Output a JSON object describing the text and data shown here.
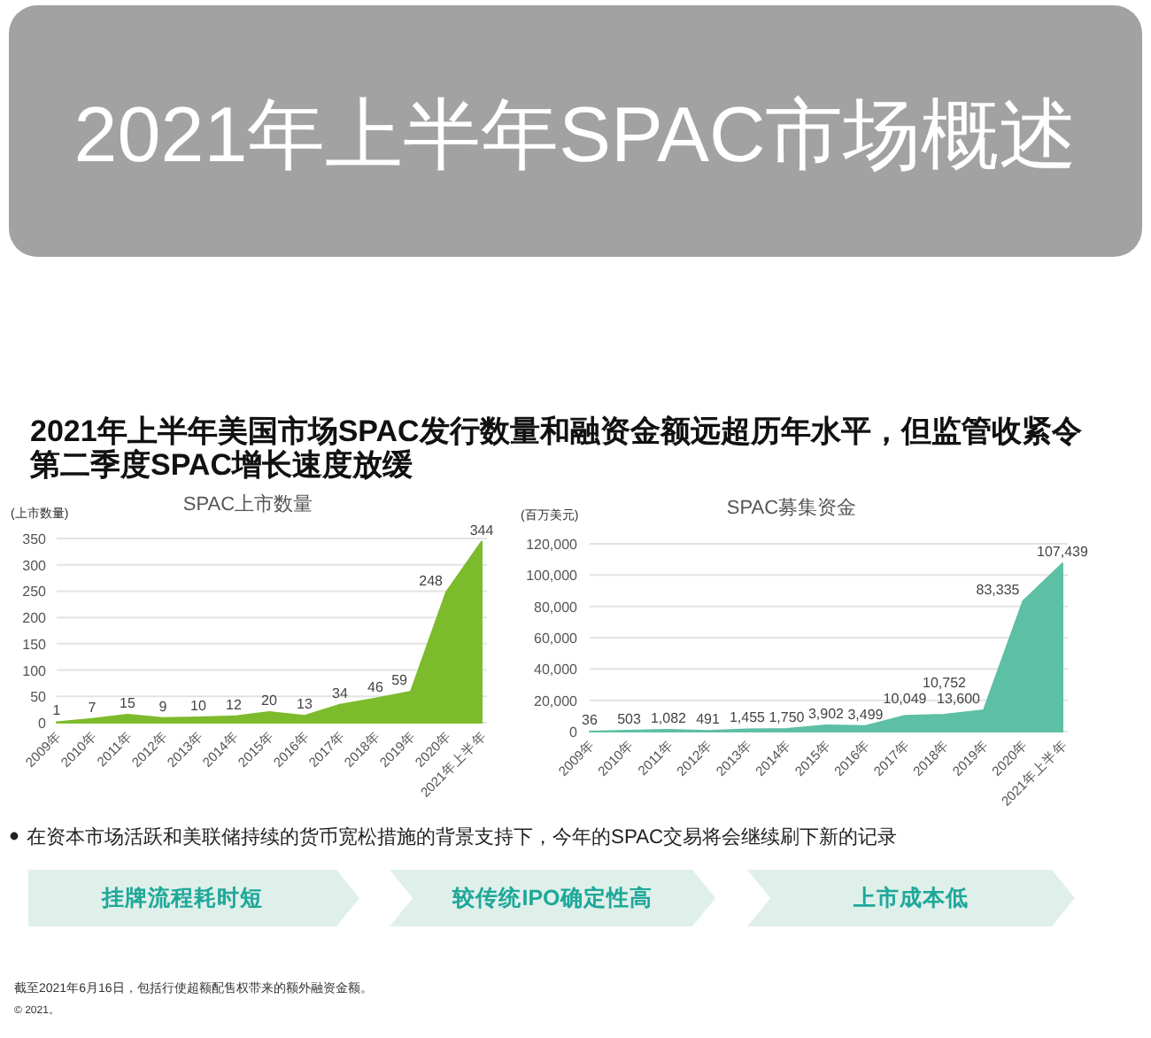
{
  "chart_data": [
    {
      "type": "other",
      "title": "2021年上半年SPAC市场概述",
      "subtitle": "2021年上半年美国市场SPAC发行数量和融资金额远超历年水平，但监管收紧令第二季度SPAC增长速度放缓"
    },
    {
      "type": "area",
      "title": "SPAC上市数量",
      "ylabel": "(上市数量)",
      "categories": [
        "2009年",
        "2010年",
        "2011年",
        "2012年",
        "2013年",
        "2014年",
        "2015年",
        "2016年",
        "2017年",
        "2018年",
        "2019年",
        "2020年",
        "2021年上半年"
      ],
      "values": [
        1,
        7,
        15,
        9,
        10,
        12,
        20,
        13,
        34,
        46,
        59,
        248,
        344
      ],
      "color": "#7cbb2c",
      "ylim": [
        0,
        350
      ],
      "yticks": [
        0,
        50,
        100,
        150,
        200,
        250,
        300,
        350
      ],
      "grid": "y",
      "data_labels": true
    },
    {
      "type": "area",
      "title": "SPAC募集资金",
      "ylabel": "(百万美元)",
      "categories": [
        "2009年",
        "2010年",
        "2011年",
        "2012年",
        "2013年",
        "2014年",
        "2015年",
        "2016年",
        "2017年",
        "2018年",
        "2019年",
        "2020年",
        "2021年上半年"
      ],
      "values": [
        36,
        503,
        1082,
        491,
        1455,
        1750,
        3902,
        3499,
        10049,
        10752,
        13600,
        83335,
        107439
      ],
      "value_labels": [
        "36",
        "503",
        "1,082",
        "491",
        "1,455",
        "1,750",
        "3,902",
        "3,499",
        "10,049",
        "10,752",
        "13,600",
        "83,335",
        "107,439"
      ],
      "color": "#5dbfa4",
      "ylim": [
        0,
        120000
      ],
      "yticks": [
        0,
        {
          "value": 20000,
          "label": "20,000"
        },
        {
          "value": 40000,
          "label": "40,000"
        },
        {
          "value": 60000,
          "label": "60,000"
        },
        {
          "value": 80000,
          "label": "80,000"
        },
        {
          "value": 100000,
          "label": "100,000"
        },
        {
          "value": 120000,
          "label": "120,000"
        }
      ],
      "grid": "y"
    },
    {
      "type": "other",
      "annotations": [
        "在资本市场活跃和美联储持续的货币宽松措施的背景支持下，今年的SPAC交易将会继续刷下新的记录",
        "挂牌流程耗时短",
        "较传统IPO确定性高",
        "上市成本低",
        "截至2021年6月16日，包括行使超额配售权带来的额外融资金额。",
        "© 2021。"
      ]
    }
  ]
}
